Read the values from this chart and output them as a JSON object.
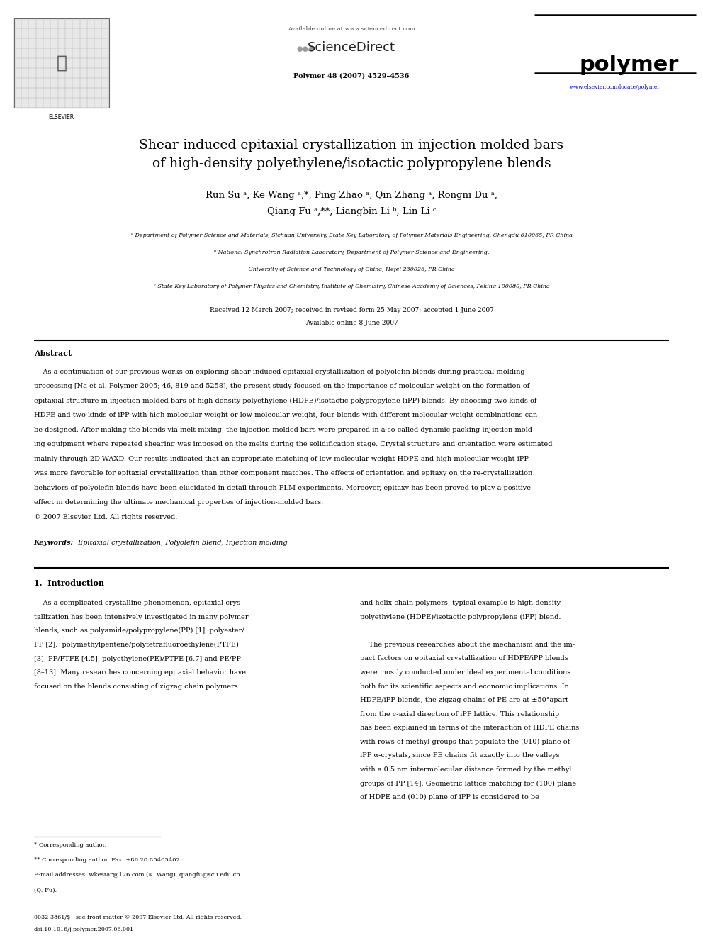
{
  "page_width": 9.92,
  "page_height": 13.23,
  "dpi": 100,
  "bg_color": "#ffffff",
  "header_online": "Available online at www.sciencedirect.com",
  "header_sciencedirect": "ScienceDirect",
  "header_journal": "Polymer 48 (2007) 4529–4536",
  "header_journal_name": "polymer",
  "header_url": "www.elsevier.com/locate/polymer",
  "elsevier_text": "ELSEVIER",
  "title_line1": "Shear-induced epitaxial crystallization in injection-molded bars",
  "title_line2": "of high-density polyethylene/isotactic polypropylene blends",
  "author_line1": "Run Su ᵃ, Ke Wang ᵃ,*, Ping Zhao ᵃ, Qin Zhang ᵃ, Rongni Du ᵃ,",
  "author_line2": "Qiang Fu ᵃ,**, Liangbin Li ᵇ, Lin Li ᶜ",
  "aff_a": "ᵃ Department of Polymer Science and Materials, Sichuan University, State Key Laboratory of Polymer Materials Engineering, Chengdu 610065, PR China",
  "aff_b1": "ᵇ National Synchrotron Radiation Laboratory, Department of Polymer Science and Engineering,",
  "aff_b2": "University of Science and Technology of China, Hefei 230026, PR China",
  "aff_c": "ᶜ State Key Laboratory of Polymer Physics and Chemistry, Institute of Chemistry, Chinese Academy of Sciences, Peking 100080, PR China",
  "received": "Received 12 March 2007; received in revised form 25 May 2007; accepted 1 June 2007",
  "available_online": "Available online 8 June 2007",
  "abstract_head": "Abstract",
  "abstract_para": "    As a continuation of our previous works on exploring shear-induced epitaxial crystallization of polyolefin blends during practical molding\nprocessing [Na et al. Polymer 2005; 46, 819 and 5258], the present study focused on the importance of molecular weight on the formation of\nepitaxial structure in injection-molded bars of high-density polyethylene (HDPE)/isotactic polypropylene (iPP) blends. By choosing two kinds of\nHDPE and two kinds of iPP with high molecular weight or low molecular weight, four blends with different molecular weight combinations can\nbe designed. After making the blends via melt mixing, the injection-molded bars were prepared in a so-called dynamic packing injection mold-\ning equipment where repeated shearing was imposed on the melts during the solidification stage. Crystal structure and orientation were estimated\nmainly through 2D-WAXD. Our results indicated that an appropriate matching of low molecular weight HDPE and high molecular weight iPP\nwas more favorable for epitaxial crystallization than other component matches. The effects of orientation and epitaxy on the re-crystallization\nbehaviors of polyolefin blends have been elucidated in detail through PLM experiments. Moreover, epitaxy has been proved to play a positive\neffect in determining the ultimate mechanical properties of injection-molded bars.",
  "abstract_copy": "© 2007 Elsevier Ltd. All rights reserved.",
  "keywords_label": "Keywords:",
  "keywords_text": " Epitaxial crystallization; Polyolefin blend; Injection molding",
  "intro_head": "1.  Introduction",
  "intro_col1": [
    "    As a complicated crystalline phenomenon, epitaxial crys-",
    "tallization has been intensively investigated in many polymer",
    "blends, such as polyamide/polypropylene(PP) [1], polyester/",
    "PP [2],  polymethylpentene/polytetrafluoroethylene(PTFE)",
    "[3], PP/PTFE [4,5], polyethylene(PE)/PTFE [6,7] and PE/PP",
    "[8–13]. Many researches concerning epitaxial behavior have",
    "focused on the blends consisting of zigzag chain polymers"
  ],
  "intro_col2": [
    "and helix chain polymers, typical example is high-density",
    "polyethylene (HDPE)/isotactic polypropylene (iPP) blend.",
    "",
    "    The previous researches about the mechanism and the im-",
    "pact factors on epitaxial crystallization of HDPE/iPP blends",
    "were mostly conducted under ideal experimental conditions",
    "both for its scientific aspects and economic implications. In",
    "HDPE/iPP blends, the zigzag chains of PE are at ±50°apart",
    "from the c-axial direction of iPP lattice. This relationship",
    "has been explained in terms of the interaction of HDPE chains",
    "with rows of methyl groups that populate the (010) plane of",
    "iPP α-crystals, since PE chains fit exactly into the valleys",
    "with a 0.5 nm intermolecular distance formed by the methyl",
    "groups of PP [14]. Geometric lattice matching for (100) plane",
    "of HDPE and (010) plane of iPP is considered to be"
  ],
  "footnote1": "* Corresponding author.",
  "footnote2": "** Corresponding author. Fax: +86 28 85405402.",
  "footnote3": "E-mail addresses: wkestar@126.com (K. Wang), qiangfu@scu.edu.cn",
  "footnote4": "(Q. Fu).",
  "copyright1": "0032-3861/$ - see front matter © 2007 Elsevier Ltd. All rights reserved.",
  "copyright2": "doi:10.1016/j.polymer.2007.06.001",
  "line_color": "#000000",
  "text_color": "#000000",
  "url_color": "#0000cc",
  "scidir_color": "#888888"
}
